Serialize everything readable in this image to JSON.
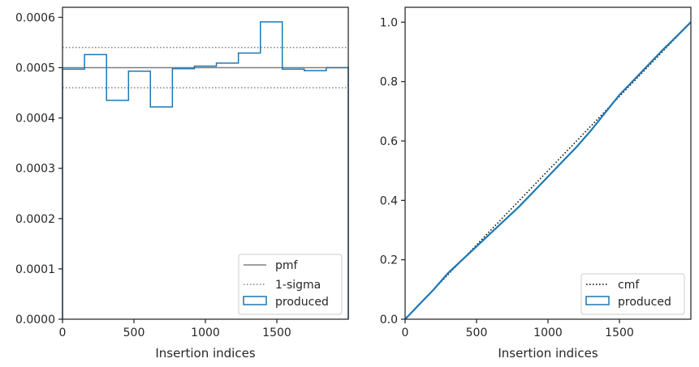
{
  "chart_data": [
    {
      "type": "histogram",
      "xlabel": "Insertion indices",
      "ylabel": "",
      "xlim": [
        0,
        2000
      ],
      "ylim": [
        0,
        0.00062
      ],
      "xticks": [
        0,
        500,
        1000,
        1500
      ],
      "xtick_labels": [
        "0",
        "500",
        "1000",
        "1500"
      ],
      "yticks": [
        0,
        0.0001,
        0.0002,
        0.0003,
        0.0004,
        0.0005,
        0.0006
      ],
      "ytick_labels": [
        "0.0000",
        "0.0001",
        "0.0002",
        "0.0003",
        "0.0004",
        "0.0005",
        "0.0006"
      ],
      "legend_position": "lower-right",
      "reference_lines": [
        {
          "name": "pmf",
          "y": 0.0005,
          "style": "solid",
          "color": "#808080"
        },
        {
          "name": "1-sigma",
          "y": 0.00054,
          "style": "dotted",
          "color": "#808080"
        },
        {
          "name": "1-sigma",
          "y": 0.00046,
          "style": "dotted",
          "color": "#808080"
        }
      ],
      "series": [
        {
          "name": "produced",
          "color": "#1f77b4",
          "bin_edges": [
            0,
            154,
            308,
            462,
            615,
            769,
            923,
            1077,
            1231,
            1385,
            1538,
            1692,
            1846,
            2000
          ],
          "values": [
            0.000497,
            0.000526,
            0.000435,
            0.000493,
            0.000422,
            0.000498,
            0.000503,
            0.000509,
            0.000529,
            0.000591,
            0.000497,
            0.000494,
            0.0005
          ]
        }
      ],
      "legend": [
        {
          "label": "pmf",
          "kind": "line-solid",
          "color": "#808080"
        },
        {
          "label": "1-sigma",
          "kind": "line-dotted",
          "color": "#808080"
        },
        {
          "label": "produced",
          "kind": "patch",
          "color": "#1f77b4"
        }
      ]
    },
    {
      "type": "line",
      "xlabel": "Insertion indices",
      "ylabel": "",
      "xlim": [
        0,
        2000
      ],
      "ylim": [
        0,
        1.05
      ],
      "xticks": [
        0,
        500,
        1000,
        1500
      ],
      "xtick_labels": [
        "0",
        "500",
        "1000",
        "1500"
      ],
      "yticks": [
        0,
        0.2,
        0.4,
        0.6,
        0.8,
        1.0
      ],
      "ytick_labels": [
        "0.0",
        "0.2",
        "0.4",
        "0.6",
        "0.8",
        "1.0"
      ],
      "legend_position": "lower-right",
      "series": [
        {
          "name": "cmf",
          "style": "dotted",
          "color": "#000000",
          "x": [
            0,
            2000
          ],
          "y": [
            0,
            1.0
          ]
        },
        {
          "name": "produced",
          "style": "step",
          "color": "#1f77b4",
          "x": [
            0,
            100,
            200,
            300,
            400,
            500,
            600,
            700,
            800,
            900,
            1000,
            1100,
            1200,
            1300,
            1400,
            1500,
            1600,
            1700,
            1800,
            1900,
            2000
          ],
          "y": [
            0,
            0.05,
            0.1,
            0.155,
            0.2,
            0.245,
            0.29,
            0.335,
            0.38,
            0.43,
            0.48,
            0.53,
            0.58,
            0.635,
            0.695,
            0.755,
            0.805,
            0.855,
            0.905,
            0.952,
            1.0
          ]
        }
      ],
      "legend": [
        {
          "label": "cmf",
          "kind": "line-dotted",
          "color": "#000000"
        },
        {
          "label": "produced",
          "kind": "patch",
          "color": "#1f77b4"
        }
      ]
    }
  ]
}
